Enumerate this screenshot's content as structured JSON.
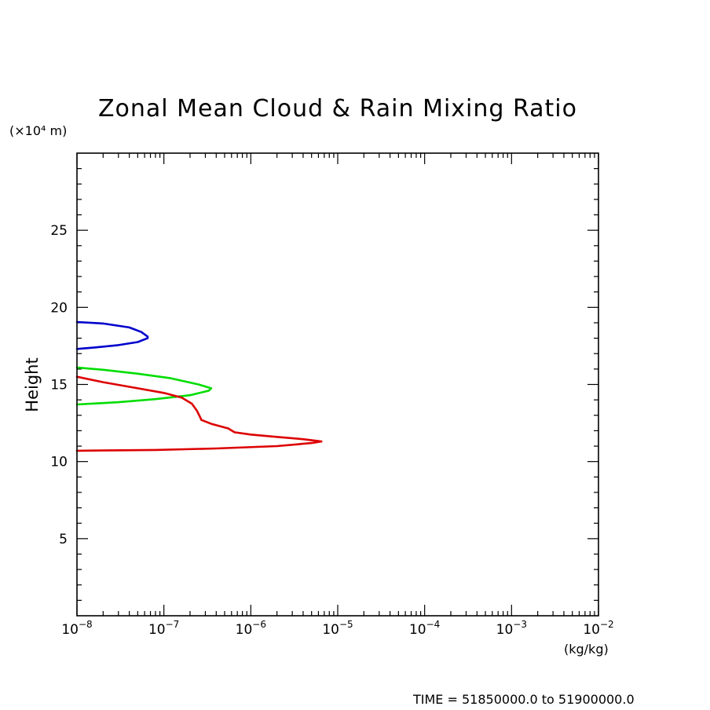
{
  "chart_data": {
    "type": "line",
    "title": "Zonal Mean Cloud & Rain Mixing Ratio",
    "ylabel": "Height",
    "y_unit": "(×10⁴ m)",
    "xlabel": "",
    "x_unit": "(kg/kg)",
    "x_scale": "log",
    "xlim": [
      1e-08,
      0.01
    ],
    "ylim": [
      0,
      30
    ],
    "x_ticks": [
      {
        "value": 1e-08,
        "base": "10",
        "exp": "−8"
      },
      {
        "value": 1e-07,
        "base": "10",
        "exp": "−7"
      },
      {
        "value": 1e-06,
        "base": "10",
        "exp": "−6"
      },
      {
        "value": 1e-05,
        "base": "10",
        "exp": "−5"
      },
      {
        "value": 0.0001,
        "base": "10",
        "exp": "−4"
      },
      {
        "value": 0.001,
        "base": "10",
        "exp": "−3"
      },
      {
        "value": 0.01,
        "base": "10",
        "exp": "−2"
      }
    ],
    "y_ticks": [
      5,
      10,
      15,
      20,
      25
    ],
    "grid": false,
    "legend": "none",
    "series": [
      {
        "color": "#0000cc",
        "points": [
          [
            1e-08,
            19.05
          ],
          [
            2e-08,
            18.95
          ],
          [
            4e-08,
            18.7
          ],
          [
            5.5e-08,
            18.4
          ],
          [
            6.5e-08,
            18.1
          ],
          [
            6.5e-08,
            18.0
          ],
          [
            5e-08,
            17.75
          ],
          [
            3e-08,
            17.55
          ],
          [
            1.6e-08,
            17.4
          ],
          [
            1e-08,
            17.3
          ]
        ]
      },
      {
        "color": "#00dd00",
        "points": [
          [
            1e-08,
            16.1
          ],
          [
            2e-08,
            15.95
          ],
          [
            5e-08,
            15.7
          ],
          [
            1.2e-07,
            15.4
          ],
          [
            2.5e-07,
            15.0
          ],
          [
            3.5e-07,
            14.75
          ],
          [
            3.3e-07,
            14.6
          ],
          [
            2e-07,
            14.3
          ],
          [
            8e-08,
            14.05
          ],
          [
            3e-08,
            13.85
          ],
          [
            1e-08,
            13.7
          ]
        ]
      },
      {
        "color": "#dd0000",
        "points": [
          [
            1e-08,
            15.5
          ],
          [
            2e-08,
            15.15
          ],
          [
            5e-08,
            14.75
          ],
          [
            1e-07,
            14.45
          ],
          [
            1.6e-07,
            14.15
          ],
          [
            2.1e-07,
            13.75
          ],
          [
            2.4e-07,
            13.3
          ],
          [
            2.6e-07,
            12.9
          ],
          [
            2.7e-07,
            12.7
          ],
          [
            3.5e-07,
            12.45
          ],
          [
            5.5e-07,
            12.15
          ],
          [
            6.5e-07,
            11.9
          ],
          [
            1e-06,
            11.75
          ],
          [
            2e-06,
            11.6
          ],
          [
            4e-06,
            11.45
          ],
          [
            6.5e-06,
            11.3
          ],
          [
            5e-06,
            11.2
          ],
          [
            2e-06,
            11.0
          ],
          [
            4e-07,
            10.85
          ],
          [
            8e-08,
            10.75
          ],
          [
            1e-08,
            10.7
          ]
        ]
      }
    ]
  },
  "footer": {
    "time_range": "TIME = 51850000.0 to 51900000.0"
  }
}
